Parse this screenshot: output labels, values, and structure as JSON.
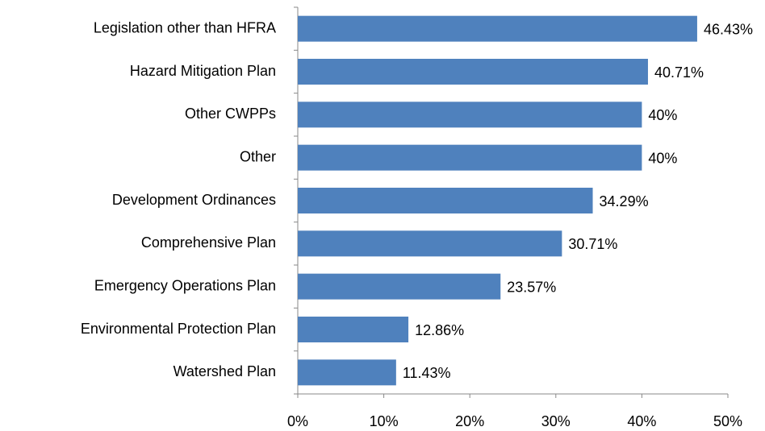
{
  "chart_data": {
    "type": "bar",
    "orientation": "horizontal",
    "categories": [
      "Legislation other than HFRA",
      "Hazard Mitigation Plan",
      "Other CWPPs",
      "Other",
      "Development Ordinances",
      "Comprehensive Plan",
      "Emergency Operations Plan",
      "Environmental Protection Plan",
      "Watershed Plan"
    ],
    "values": [
      46.43,
      40.71,
      40,
      40,
      34.29,
      30.71,
      23.57,
      12.86,
      11.43
    ],
    "value_labels": [
      "46.43%",
      "40.71%",
      "40%",
      "40%",
      "34.29%",
      "30.71%",
      "23.57%",
      "12.86%",
      "11.43%"
    ],
    "color": "#4f81bd",
    "xlim": [
      0,
      50
    ],
    "xticks": [
      {
        "value": 0,
        "label": "0%"
      },
      {
        "value": 10,
        "label": "10%"
      },
      {
        "value": 20,
        "label": "20%"
      },
      {
        "value": 30,
        "label": "30%"
      },
      {
        "value": 40,
        "label": "40%"
      },
      {
        "value": 50,
        "label": "50%"
      }
    ],
    "grid": false
  }
}
